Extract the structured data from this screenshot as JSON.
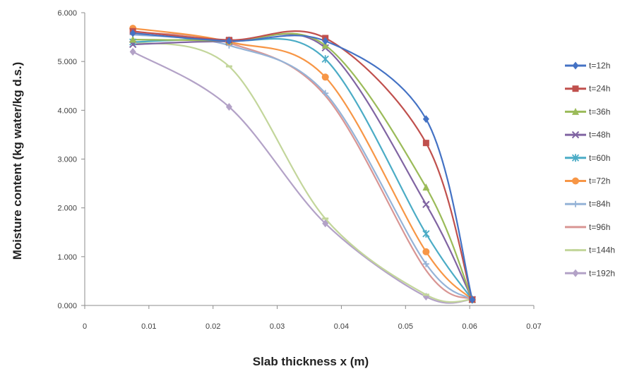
{
  "chart_data": {
    "type": "line",
    "title": "",
    "xlabel": "Slab thickness x (m)",
    "ylabel": "Moisture content (kg water/kg d.s.)",
    "xlim": [
      0,
      0.07
    ],
    "ylim": [
      0,
      6
    ],
    "x_ticks": [
      0,
      0.01,
      0.02,
      0.03,
      0.04,
      0.05,
      0.06,
      0.07
    ],
    "x_tick_labels": [
      "0",
      "0.01",
      "0.02",
      "0.03",
      "0.04",
      "0.05",
      "0.06",
      "0.07"
    ],
    "y_ticks": [
      0,
      1,
      2,
      3,
      4,
      5,
      6
    ],
    "y_tick_labels": [
      "0.000",
      "1.000",
      "2.000",
      "3.000",
      "4.000",
      "5.000",
      "6.000"
    ],
    "grid": false,
    "legend_position": "right",
    "x": [
      0.0075,
      0.0225,
      0.0375,
      0.0532,
      0.0604
    ],
    "series": [
      {
        "name": "t=12h",
        "color": "#4472C4",
        "marker": "diamond",
        "values": [
          5.58,
          5.42,
          5.42,
          3.82,
          0.12
        ]
      },
      {
        "name": "t=24h",
        "color": "#C0504D",
        "marker": "square",
        "values": [
          5.62,
          5.44,
          5.48,
          3.33,
          0.12
        ]
      },
      {
        "name": "t=36h",
        "color": "#9BBB59",
        "marker": "triangle",
        "values": [
          5.45,
          5.42,
          5.33,
          2.42,
          0.12
        ]
      },
      {
        "name": "t=48h",
        "color": "#8064A2",
        "marker": "x",
        "values": [
          5.35,
          5.41,
          5.28,
          2.07,
          0.12
        ]
      },
      {
        "name": "t=60h",
        "color": "#4BACC6",
        "marker": "star",
        "values": [
          5.4,
          5.43,
          5.05,
          1.47,
          0.12
        ]
      },
      {
        "name": "t=72h",
        "color": "#F79646",
        "marker": "circle",
        "values": [
          5.68,
          5.4,
          4.68,
          1.1,
          0.12
        ]
      },
      {
        "name": "t=84h",
        "color": "#95B3D7",
        "marker": "plus",
        "values": [
          5.55,
          5.33,
          4.35,
          0.85,
          0.12
        ]
      },
      {
        "name": "t=96h",
        "color": "#D99694",
        "marker": "none",
        "values": [
          5.6,
          5.38,
          4.3,
          0.72,
          0.12
        ]
      },
      {
        "name": "t=144h",
        "color": "#C3D69B",
        "marker": "dash",
        "values": [
          5.4,
          4.9,
          1.78,
          0.22,
          0.12
        ]
      },
      {
        "name": "t=192h",
        "color": "#B3A2C7",
        "marker": "diamond",
        "values": [
          5.2,
          4.07,
          1.68,
          0.18,
          0.12
        ]
      }
    ]
  }
}
